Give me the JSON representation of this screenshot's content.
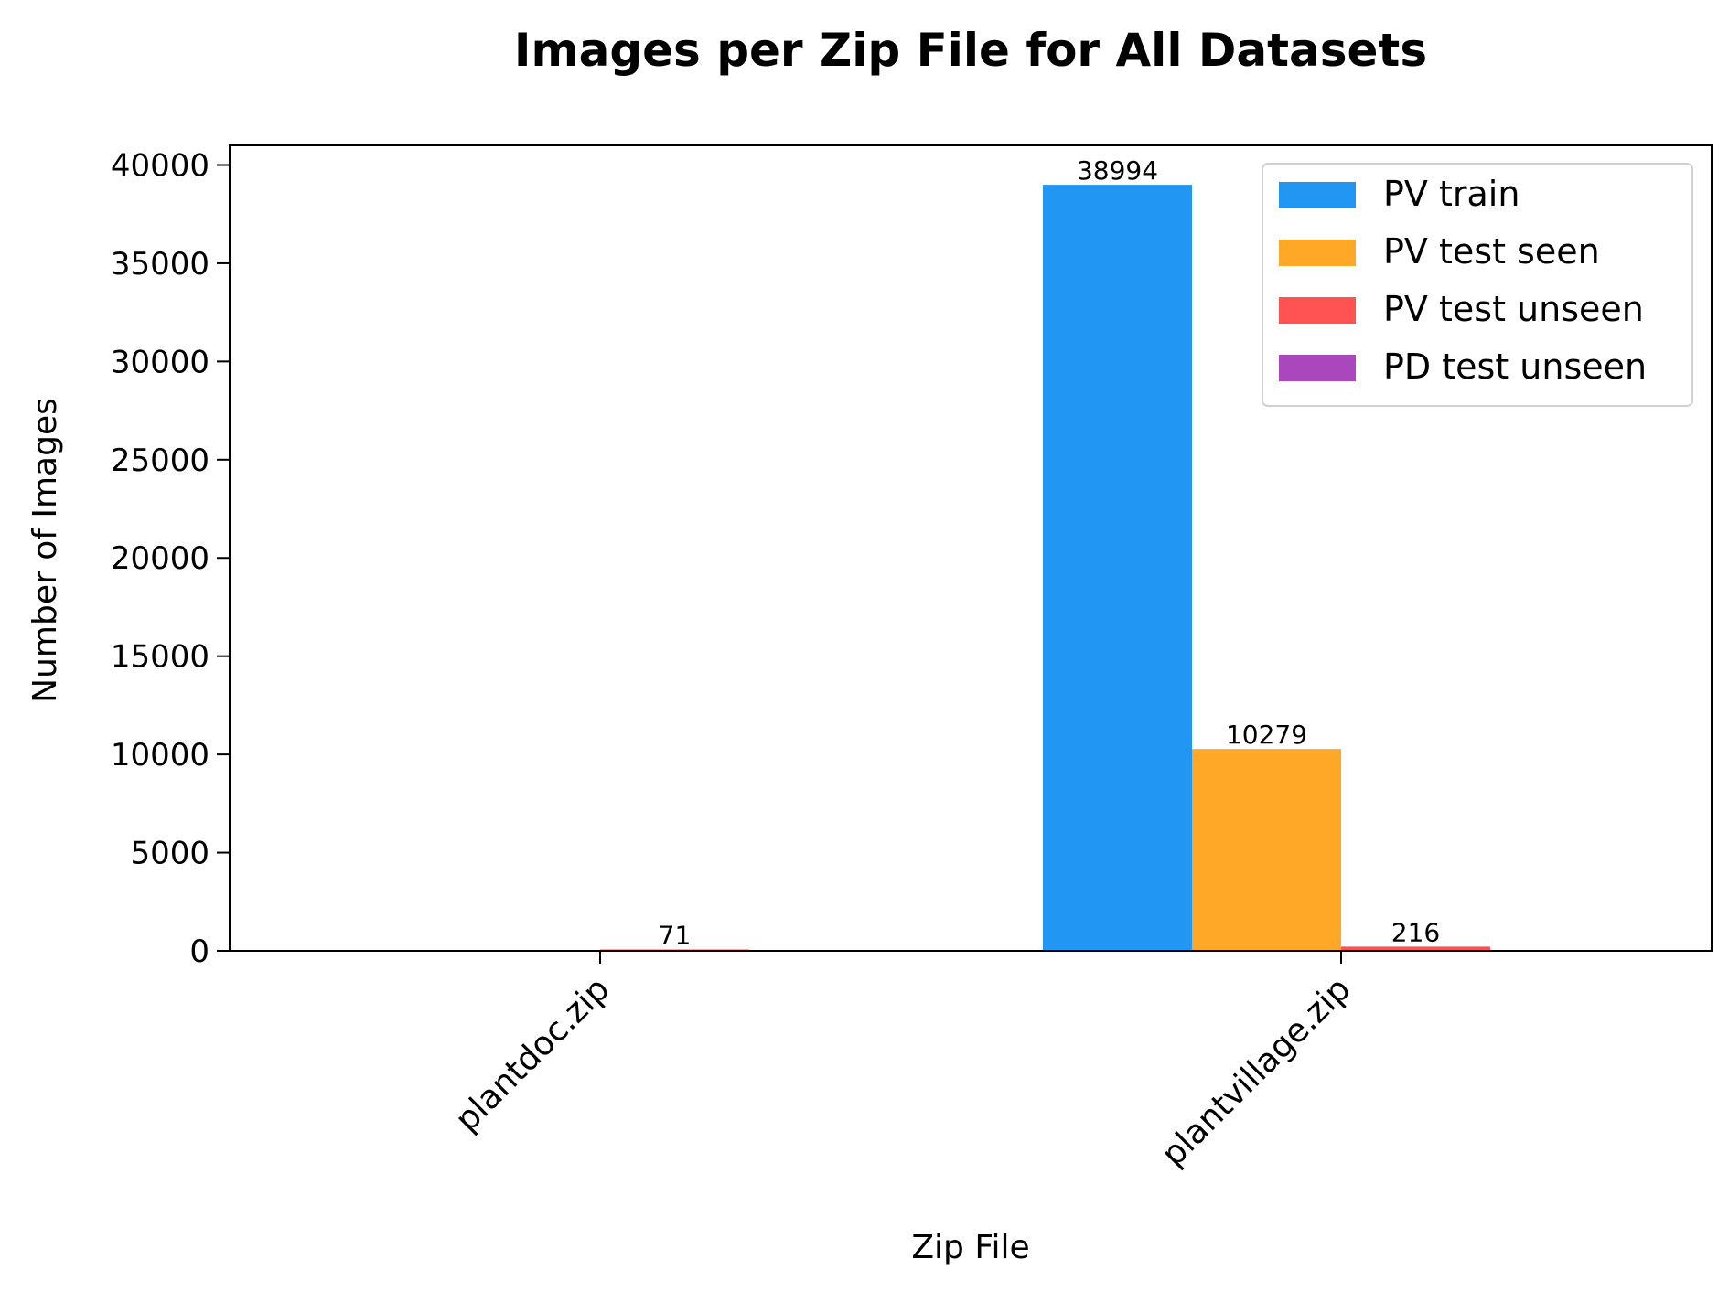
{
  "chart_data": {
    "type": "bar",
    "title": "Images per Zip File for All Datasets",
    "xlabel": "Zip File",
    "ylabel": "Number of Images",
    "categories": [
      "plantdoc.zip",
      "plantvillage.zip"
    ],
    "ylim": [
      0,
      41000
    ],
    "yticks": [
      0,
      5000,
      10000,
      15000,
      20000,
      25000,
      30000,
      35000,
      40000
    ],
    "ytick_labels": [
      "0",
      "5000",
      "10000",
      "15000",
      "20000",
      "25000",
      "30000",
      "35000",
      "40000"
    ],
    "grid": false,
    "legend_position": "top-right",
    "series": [
      {
        "name": "PV train",
        "color": "#2196F3",
        "values": [
          0,
          38994
        ],
        "labels": [
          "",
          "38994"
        ]
      },
      {
        "name": "PV test seen",
        "color": "#FFA726",
        "values": [
          0,
          10279
        ],
        "labels": [
          "",
          "10279"
        ]
      },
      {
        "name": "PV test unseen",
        "color": "#FF5252",
        "values": [
          71,
          216
        ],
        "labels": [
          "71",
          "216"
        ]
      },
      {
        "name": "PD test unseen",
        "color": "#AB47BC",
        "values": [
          0,
          0
        ],
        "labels": [
          "",
          ""
        ]
      }
    ]
  }
}
